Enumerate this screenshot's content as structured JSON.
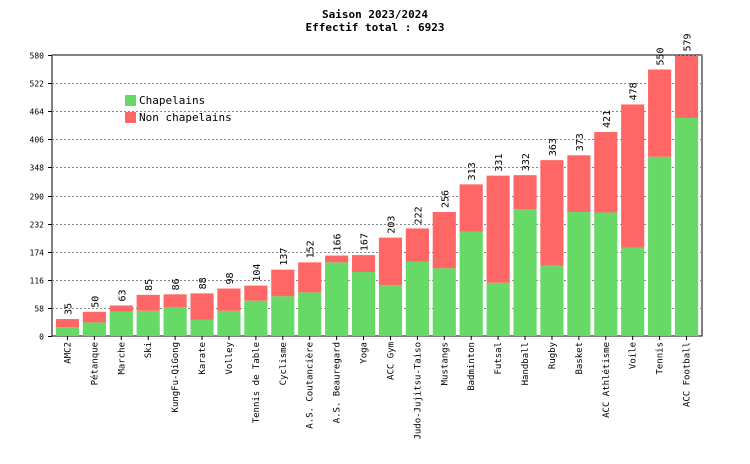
{
  "chart_data": {
    "type": "bar",
    "stacked": true,
    "title": "Saison 2023/2024",
    "subtitle": "Effectif total : 6923",
    "xlabel": "",
    "ylabel": "",
    "ylim": [
      0,
      580
    ],
    "yticks": [
      0,
      58,
      116,
      174,
      232,
      290,
      348,
      406,
      464,
      522,
      580
    ],
    "grid": true,
    "legend_position": "top-left",
    "categories": [
      "AMC2",
      "Pétanque",
      "Marche",
      "Ski",
      "KungFu-QiGong",
      "Karate",
      "Volley",
      "Tennis de Table",
      "Cyclisme",
      "A.S. Coutancière",
      "A.S. Beauregard",
      "Yoga",
      "ACC Gym",
      "Judo-Jujitsu-Taiso",
      "Mustangs",
      "Badminton",
      "Futsal",
      "Handball",
      "Rugby",
      "Basket",
      "ACC Athlétisme",
      "Voile",
      "Tennis",
      "ACC Football"
    ],
    "totals": [
      35,
      50,
      63,
      85,
      86,
      88,
      98,
      104,
      137,
      152,
      166,
      167,
      203,
      222,
      256,
      313,
      331,
      332,
      363,
      373,
      421,
      478,
      550,
      579
    ],
    "series": [
      {
        "name": "Chapelains",
        "color": "#66d966",
        "values": [
          18,
          28,
          50,
          52,
          60,
          34,
          52,
          73,
          82,
          90,
          152,
          132,
          105,
          153,
          140,
          215,
          110,
          262,
          145,
          256,
          255,
          182,
          370,
          450
        ]
      },
      {
        "name": "Non chapelains",
        "color": "#ff6666",
        "values": [
          17,
          22,
          13,
          33,
          26,
          54,
          46,
          31,
          55,
          62,
          14,
          35,
          98,
          69,
          116,
          98,
          221,
          70,
          218,
          117,
          166,
          296,
          180,
          129
        ]
      }
    ]
  }
}
